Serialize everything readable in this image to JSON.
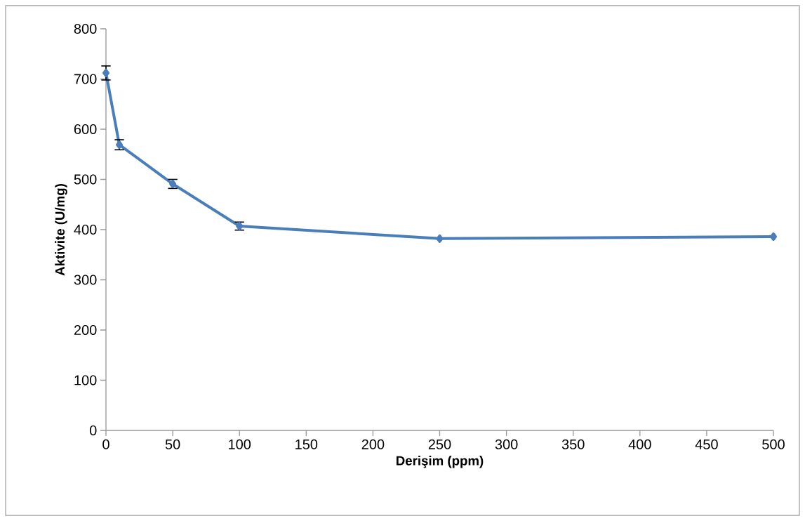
{
  "chart_data": {
    "type": "line",
    "xlabel": "Derişim (ppm)",
    "ylabel": "Aktivite (U/mg)",
    "x": [
      0,
      10,
      50,
      100,
      250,
      500
    ],
    "series": [
      {
        "color": "#4a7ebb",
        "values": [
          712,
          569,
          491,
          407,
          382,
          386
        ],
        "errors": [
          14,
          10,
          9,
          8,
          null,
          null
        ]
      }
    ],
    "xlim": [
      0,
      500
    ],
    "xticks": [
      0,
      50,
      100,
      150,
      200,
      250,
      300,
      350,
      400,
      450,
      500
    ],
    "ylim": [
      0,
      800
    ],
    "yticks": [
      0,
      100,
      200,
      300,
      400,
      500,
      600,
      700,
      800
    ],
    "grid": false,
    "marker": "diamond",
    "line_style": "solid"
  }
}
